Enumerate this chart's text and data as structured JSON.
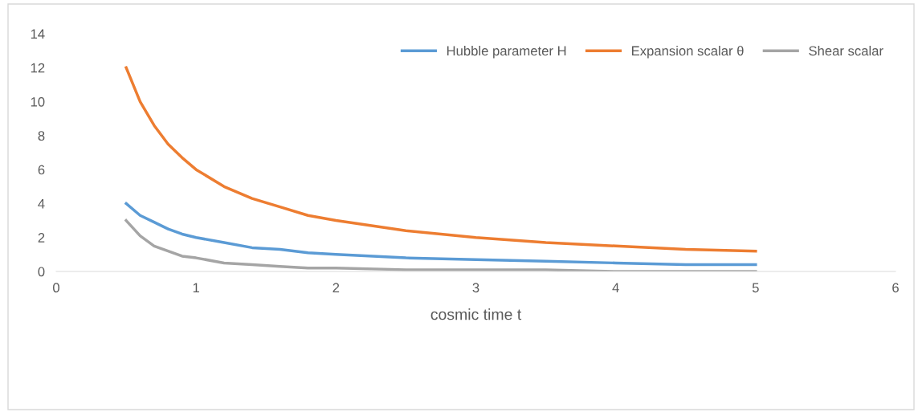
{
  "chart_data": {
    "type": "line",
    "xlabel": "cosmic time t",
    "x": [
      0.5,
      0.6,
      0.7,
      0.8,
      0.9,
      1,
      1.2,
      1.4,
      1.6,
      1.8,
      2,
      2.5,
      3,
      3.5,
      4,
      4.5,
      5
    ],
    "series": [
      {
        "name": "Hubble parameter H",
        "color": "#5b9bd5",
        "values": [
          4,
          3.3,
          2.9,
          2.5,
          2.2,
          2,
          1.7,
          1.4,
          1.3,
          1.1,
          1,
          0.8,
          0.7,
          0.6,
          0.5,
          0.4,
          0.4
        ]
      },
      {
        "name": "Expansion scalar θ",
        "color": "#ed7d31",
        "values": [
          12,
          10,
          8.6,
          7.5,
          6.7,
          6,
          5,
          4.3,
          3.8,
          3.3,
          3,
          2.4,
          2,
          1.7,
          1.5,
          1.3,
          1.2
        ]
      },
      {
        "name": "Shear scalar",
        "color": "#a5a5a5",
        "values": [
          3,
          2.1,
          1.5,
          1.2,
          0.9,
          0.8,
          0.5,
          0.4,
          0.3,
          0.2,
          0.2,
          0.1,
          0.1,
          0.1,
          0,
          0,
          0
        ]
      }
    ],
    "xlim": [
      0,
      6
    ],
    "xticks": [
      0,
      1,
      2,
      3,
      4,
      5,
      6
    ],
    "ylim": [
      0,
      14
    ],
    "yticks": [
      0,
      2,
      4,
      6,
      8,
      10,
      12,
      14
    ],
    "legend": "top right",
    "marker": "none",
    "line_style": "solid",
    "grid": false
  }
}
